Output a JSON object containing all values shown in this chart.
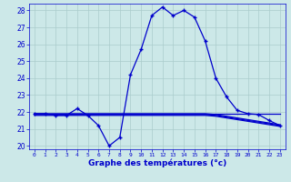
{
  "xlabel": "Graphe des températures (°c)",
  "hours": [
    0,
    1,
    2,
    3,
    4,
    5,
    6,
    7,
    8,
    9,
    10,
    11,
    12,
    13,
    14,
    15,
    16,
    17,
    18,
    19,
    20,
    21,
    22,
    23
  ],
  "temp_main": [
    21.9,
    21.9,
    21.8,
    21.8,
    22.2,
    21.8,
    21.2,
    20.0,
    20.5,
    24.2,
    25.7,
    27.7,
    28.2,
    27.7,
    28.0,
    27.6,
    26.2,
    24.0,
    22.9,
    22.1,
    21.9,
    21.85,
    21.5,
    21.2
  ],
  "temp_flat1": [
    21.9,
    21.9,
    21.9,
    21.9,
    21.9,
    21.9,
    21.9,
    21.9,
    21.9,
    21.9,
    21.9,
    21.9,
    21.9,
    21.9,
    21.9,
    21.9,
    21.9,
    21.9,
    21.9,
    21.9,
    21.9,
    21.9,
    21.9,
    21.9
  ],
  "temp_flat2": [
    21.9,
    21.9,
    21.9,
    21.9,
    21.9,
    21.9,
    21.9,
    21.9,
    21.9,
    21.9,
    21.9,
    21.9,
    21.9,
    21.9,
    21.9,
    21.9,
    21.9,
    21.85,
    21.75,
    21.65,
    21.55,
    21.45,
    21.35,
    21.25
  ],
  "temp_flat3": [
    21.85,
    21.85,
    21.85,
    21.85,
    21.85,
    21.85,
    21.85,
    21.85,
    21.85,
    21.85,
    21.85,
    21.85,
    21.85,
    21.85,
    21.85,
    21.85,
    21.85,
    21.8,
    21.7,
    21.6,
    21.5,
    21.4,
    21.3,
    21.2
  ],
  "temp_flat4": [
    21.8,
    21.8,
    21.8,
    21.8,
    21.8,
    21.8,
    21.8,
    21.8,
    21.8,
    21.8,
    21.8,
    21.8,
    21.8,
    21.8,
    21.8,
    21.8,
    21.8,
    21.75,
    21.65,
    21.55,
    21.45,
    21.35,
    21.25,
    21.15
  ],
  "line_color": "#0000cc",
  "bg_color": "#cce8e8",
  "grid_color": "#aacccc",
  "ylim_min": 19.8,
  "ylim_max": 28.4,
  "yticks": [
    20,
    21,
    22,
    23,
    24,
    25,
    26,
    27,
    28
  ],
  "ytick_labels": [
    "20",
    "21",
    "22",
    "23",
    "24",
    "25",
    "26",
    "27",
    "28"
  ],
  "xtick_labels": [
    "0",
    "1",
    "2",
    "3",
    "4",
    "5",
    "6",
    "7",
    "8",
    "9",
    "10",
    "11",
    "12",
    "13",
    "14",
    "15",
    "16",
    "17",
    "18",
    "19",
    "20",
    "21",
    "22",
    "23"
  ]
}
